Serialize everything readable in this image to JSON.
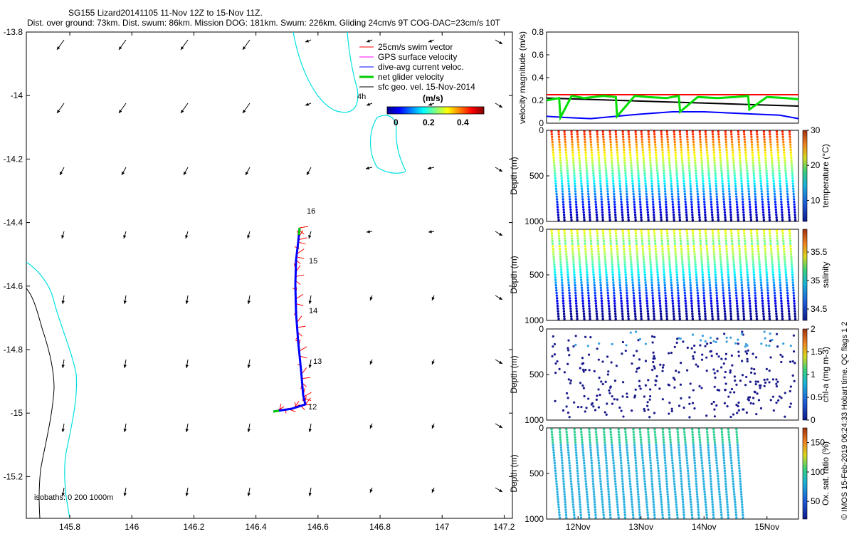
{
  "header": {
    "title": "SG155 Lizard20141105 11-Nov 12Z to 15-Nov 11Z.",
    "subtitle": "Dist. over ground: 73km. Dist. swum: 86km. Mission DOG: 181km. Swum: 226km. Gliding 24cm/s 9T COG-DAC=23cm/s 10T"
  },
  "side_caption": "© IMOS 15-Feb-2019 06:24:33 Hobart time. QC flags 1  2",
  "map": {
    "xticks": [
      "145.8",
      "146",
      "146.2",
      "146.4",
      "146.6",
      "146.8",
      "147",
      "147.2"
    ],
    "yticks": [
      "-13.8",
      "-14",
      "-14.2",
      "-14.4",
      "-14.6",
      "-14.8",
      "-15",
      "-15.2"
    ],
    "isobaths_label": "isobaths: 0   200  1000m",
    "legend": [
      {
        "label": "25cm/s swim vector",
        "color": "#ff0000"
      },
      {
        "label": "GPS surface velocity",
        "color": "#ff00ff"
      },
      {
        "label": "dive-avg current veloc.",
        "color": "#0000ff"
      },
      {
        "label": "net glider velocity",
        "color": "#00cc00"
      },
      {
        "label": "sfc geo. vel. 15-Nov-2014",
        "color": "#000000"
      }
    ],
    "colorbar": {
      "unit": "(m/s)",
      "ticks": [
        "0",
        "0.2",
        "0.4"
      ]
    },
    "time_labels": [
      "4h",
      "16",
      "15",
      "14",
      "13",
      "12"
    ],
    "colors": {
      "isobath_200": "#00e0e0",
      "isobath_0": "#000000"
    }
  },
  "chart_data": [
    {
      "type": "line",
      "ylabel": "velocity magnitude (m/s)",
      "ylim": [
        0,
        0.8
      ],
      "yticks": [
        "0",
        "0.2",
        "0.4",
        "0.6",
        "0.8"
      ],
      "series": [
        {
          "color": "#ff0000",
          "x": [
            11.5,
            15.5
          ],
          "y": [
            0.25,
            0.25
          ]
        },
        {
          "color": "#000000",
          "x": [
            11.5,
            15.5
          ],
          "y": [
            0.22,
            0.15
          ]
        },
        {
          "color": "#0000ff",
          "x": [
            11.5,
            11.8,
            12.2,
            12.6,
            13.0,
            13.5,
            14.0,
            14.4,
            14.8,
            15.2,
            15.5
          ],
          "y": [
            0.06,
            0.05,
            0.04,
            0.06,
            0.08,
            0.1,
            0.1,
            0.09,
            0.08,
            0.07,
            0.04
          ]
        },
        {
          "color": "#00dd00",
          "x": [
            11.5,
            11.7,
            11.72,
            11.9,
            12.1,
            12.4,
            12.6,
            12.62,
            12.9,
            13.1,
            13.4,
            13.6,
            13.62,
            13.9,
            14.2,
            14.5,
            14.7,
            14.72,
            15.0,
            15.3,
            15.5
          ],
          "y": [
            0.2,
            0.22,
            0.05,
            0.24,
            0.22,
            0.24,
            0.23,
            0.06,
            0.24,
            0.23,
            0.22,
            0.24,
            0.1,
            0.23,
            0.22,
            0.23,
            0.24,
            0.12,
            0.23,
            0.22,
            0.21
          ]
        }
      ]
    },
    {
      "type": "scatter",
      "ylabel": "Depth (m)",
      "clabel": "temperature (°C)",
      "yticks": [
        "0",
        "500",
        "1000"
      ],
      "cticks": [
        "10",
        "20",
        "30"
      ],
      "clim": [
        4,
        30
      ],
      "ndives": 19,
      "x_start": 11.58,
      "x_end": 15.45,
      "max_depth": 1000
    },
    {
      "type": "scatter",
      "ylabel": "Depth (m)",
      "clabel": "salinity",
      "yticks": [
        "0",
        "500",
        "1000"
      ],
      "cticks": [
        "34.5",
        "35",
        "35.5"
      ],
      "clim": [
        34.3,
        35.9
      ],
      "ndives": 19,
      "x_start": 11.58,
      "x_end": 15.45,
      "max_depth": 1000
    },
    {
      "type": "scatter",
      "ylabel": "Depth (m)",
      "clabel": "chl-a (mg m-3)",
      "yticks": [
        "0",
        "500",
        "1000"
      ],
      "cticks": [
        "0",
        "0.5",
        "1",
        "1.5",
        "2"
      ],
      "clim": [
        0,
        2
      ],
      "ndives": 19,
      "x_start": 11.58,
      "x_end": 15.45,
      "max_depth": 1000
    },
    {
      "type": "scatter",
      "ylabel": "Depth (m)",
      "clabel": "Ox. sat. ratio (%)",
      "yticks": [
        "0",
        "500",
        "1000"
      ],
      "cticks": [
        "50",
        "100",
        "150"
      ],
      "clim": [
        20,
        175
      ],
      "ndives": 13,
      "x_start": 11.58,
      "x_end": 14.62,
      "max_depth": 1000,
      "xticks": [
        "12Nov",
        "13Nov",
        "14Nov",
        "15Nov"
      ]
    }
  ]
}
